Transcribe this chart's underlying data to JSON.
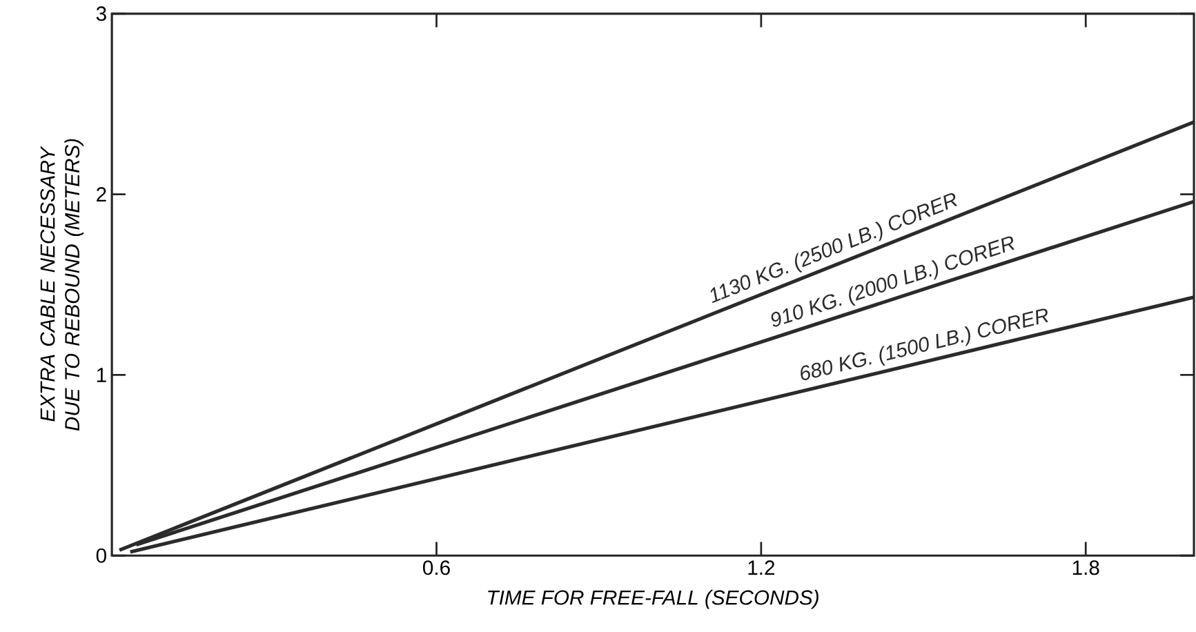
{
  "chart_data": {
    "type": "line",
    "xlabel": "TIME FOR FREE-FALL (SECONDS)",
    "ylabel": "EXTRA CABLE NECESSARY DUE TO REBOUND (METERS)",
    "xlim": [
      0,
      2.0
    ],
    "ylim": [
      0,
      3
    ],
    "xticks": [
      0.6,
      1.2,
      1.8
    ],
    "yticks": [
      0,
      1,
      2,
      3
    ],
    "marker": "none",
    "line_style": "solid",
    "grid": false,
    "legend": false,
    "series": [
      {
        "name": "1130 KG. (2500 LB.) CORER",
        "color": "#2b2b2b",
        "x": [
          0.014,
          2.0
        ],
        "values": [
          0.03,
          2.4
        ]
      },
      {
        "name": "910 KG. (2000 LB.) CORER",
        "color": "#2b2b2b",
        "x": [
          0.045,
          2.0
        ],
        "values": [
          0.06,
          1.96
        ]
      },
      {
        "name": "680 KG. (1500 LB.) CORER",
        "color": "#2b2b2b",
        "x": [
          0.034,
          2.0
        ],
        "values": [
          0.02,
          1.43
        ]
      }
    ]
  }
}
